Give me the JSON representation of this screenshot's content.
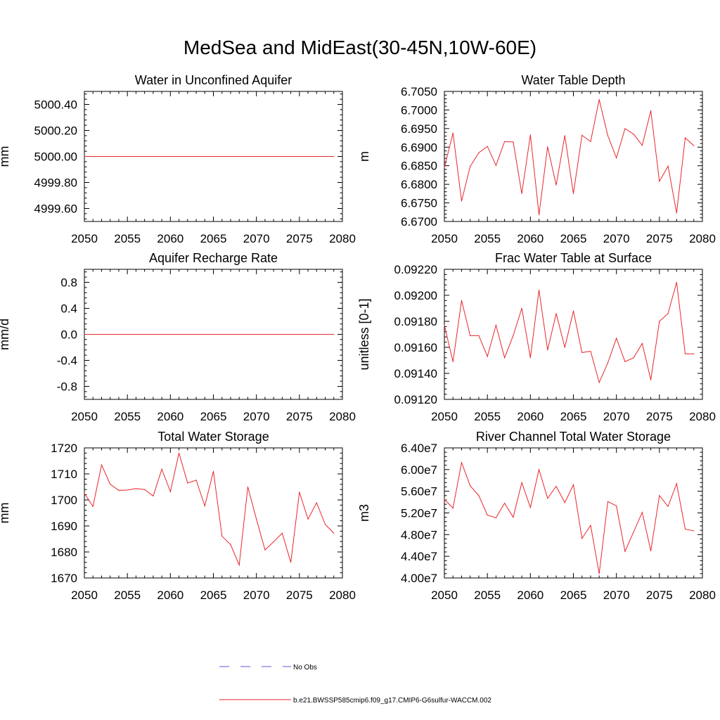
{
  "title": "MedSea and MidEast(30-45N,10W-60E)",
  "legend": {
    "placement": "bottom-center",
    "entries": [
      {
        "label": "No Obs",
        "color": "#5b5bd6",
        "style": "dashed"
      },
      {
        "label": "b.e21.BWSSP585cmip6.f09_g17.CMIP6-G6sulfur-WACCM.002",
        "color": "#e8262b",
        "style": "solid"
      }
    ]
  },
  "chart_data": [
    {
      "type": "line",
      "title": "Water in Unconfined Aquifer",
      "ylabel": "mm",
      "xlim": [
        2050,
        2080
      ],
      "ylim": [
        4999.5,
        5000.5
      ],
      "xticks": [
        2050,
        2055,
        2060,
        2065,
        2070,
        2075,
        2080
      ],
      "yticks": [
        4999.6,
        4999.8,
        5000.0,
        5000.2,
        5000.4
      ],
      "ytick_labels": [
        "4999.60",
        "4999.80",
        "5000.00",
        "5000.20",
        "5000.40"
      ],
      "series": [
        {
          "color": "#e8262b",
          "x": [
            2050,
            2079
          ],
          "values": [
            5000.0,
            5000.0
          ]
        }
      ]
    },
    {
      "type": "line",
      "title": "Water Table Depth",
      "ylabel": "m",
      "xlim": [
        2050,
        2080
      ],
      "ylim": [
        6.67,
        6.705
      ],
      "xticks": [
        2050,
        2055,
        2060,
        2065,
        2070,
        2075,
        2080
      ],
      "yticks": [
        6.67,
        6.675,
        6.68,
        6.685,
        6.69,
        6.695,
        6.7,
        6.705
      ],
      "ytick_labels": [
        "6.6700",
        "6.6750",
        "6.6800",
        "6.6850",
        "6.6900",
        "6.6950",
        "6.7000",
        "6.7050"
      ],
      "series": [
        {
          "color": "#e8262b",
          "x_start": 2050,
          "values": [
            6.6845,
            6.6938,
            6.6755,
            6.6848,
            6.6885,
            6.6902,
            6.6851,
            6.6915,
            6.6914,
            6.6775,
            6.6933,
            6.6718,
            6.6901,
            6.6798,
            6.6931,
            6.6775,
            6.6932,
            6.6915,
            6.7028,
            6.6931,
            6.6871,
            6.695,
            6.6935,
            6.6905,
            6.6998,
            6.6808,
            6.6849,
            6.6723,
            6.6925,
            6.6904
          ]
        }
      ]
    },
    {
      "type": "line",
      "title": "Aquifer Recharge Rate",
      "ylabel": "mm/d",
      "xlim": [
        2050,
        2080
      ],
      "ylim": [
        -1.0,
        1.0
      ],
      "xticks": [
        2050,
        2055,
        2060,
        2065,
        2070,
        2075,
        2080
      ],
      "yticks": [
        -0.8,
        -0.4,
        0.0,
        0.4,
        0.8
      ],
      "ytick_labels": [
        "-0.8",
        "-0.4",
        "0.0",
        "0.4",
        "0.8"
      ],
      "series": [
        {
          "color": "#e8262b",
          "x": [
            2050,
            2079
          ],
          "values": [
            0.0,
            0.0
          ]
        }
      ]
    },
    {
      "type": "line",
      "title": "Frac Water Table at Surface",
      "ylabel": "unitless [0-1]",
      "xlim": [
        2050,
        2080
      ],
      "ylim": [
        0.0912,
        0.0922
      ],
      "xticks": [
        2050,
        2055,
        2060,
        2065,
        2070,
        2075,
        2080
      ],
      "yticks": [
        0.0912,
        0.0914,
        0.0916,
        0.0918,
        0.092,
        0.0922
      ],
      "ytick_labels": [
        "0.09120",
        "0.09140",
        "0.09160",
        "0.09180",
        "0.09200",
        "0.09220"
      ],
      "series": [
        {
          "color": "#e8262b",
          "x_start": 2050,
          "values": [
            0.09177,
            0.09149,
            0.09196,
            0.09169,
            0.09169,
            0.09153,
            0.09177,
            0.09152,
            0.09169,
            0.0919,
            0.09152,
            0.09204,
            0.09158,
            0.09186,
            0.0916,
            0.09188,
            0.09156,
            0.09157,
            0.09133,
            0.09148,
            0.09167,
            0.09149,
            0.09152,
            0.09163,
            0.09135,
            0.0918,
            0.09186,
            0.0921,
            0.09155,
            0.09155
          ]
        }
      ]
    },
    {
      "type": "line",
      "title": "Total Water Storage",
      "ylabel": "mm",
      "xlim": [
        2050,
        2080
      ],
      "ylim": [
        1670,
        1720
      ],
      "xticks": [
        2050,
        2055,
        2060,
        2065,
        2070,
        2075,
        2080
      ],
      "yticks": [
        1670,
        1680,
        1690,
        1700,
        1710,
        1720
      ],
      "ytick_labels": [
        "1670",
        "1680",
        "1690",
        "1700",
        "1710",
        "1720"
      ],
      "series": [
        {
          "color": "#e8262b",
          "x_start": 2050,
          "values": [
            1702.5,
            1697.5,
            1713.5,
            1706.0,
            1703.7,
            1703.8,
            1704.4,
            1704.0,
            1701.5,
            1711.8,
            1703.2,
            1718.0,
            1706.5,
            1707.6,
            1697.7,
            1711.0,
            1686.1,
            1682.8,
            1675.0,
            1705.0,
            1692.6,
            1680.8,
            1683.9,
            1687.2,
            1676.0,
            1703.0,
            1692.6,
            1698.9,
            1690.6,
            1687.2
          ]
        }
      ]
    },
    {
      "type": "line",
      "title": "River Channel Total Water Storage",
      "ylabel": "m3",
      "xlim": [
        2050,
        2080
      ],
      "ylim": [
        40000000,
        64000000
      ],
      "xticks": [
        2050,
        2055,
        2060,
        2065,
        2070,
        2075,
        2080
      ],
      "yticks": [
        40000000,
        44000000,
        48000000,
        52000000,
        56000000,
        60000000,
        64000000
      ],
      "ytick_labels": [
        "4.00e7",
        "4.40e7",
        "4.80e7",
        "5.20e7",
        "5.60e7",
        "6.00e7",
        "6.40e7"
      ],
      "series": [
        {
          "color": "#e8262b",
          "x_start": 2050,
          "values": [
            54500000,
            52900000,
            61300000,
            57000000,
            55200000,
            51600000,
            51100000,
            53800000,
            51200000,
            57600000,
            53000000,
            60000000,
            54700000,
            56900000,
            53900000,
            57200000,
            47300000,
            49700000,
            40800000,
            54100000,
            53300000,
            44900000,
            48500000,
            52100000,
            45000000,
            55200000,
            53200000,
            57400000,
            49000000,
            48700000
          ]
        }
      ]
    }
  ]
}
